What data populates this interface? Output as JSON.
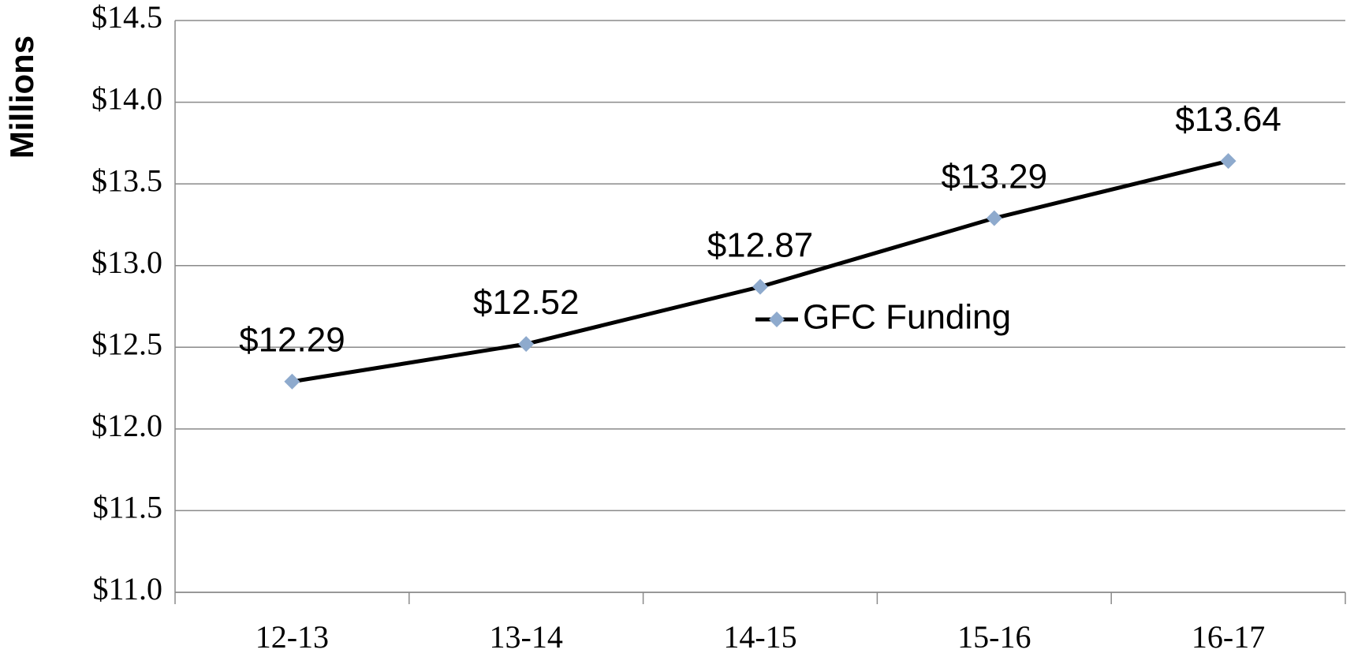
{
  "chart_data": {
    "type": "line",
    "y_label": "Millions",
    "categories": [
      "12-13",
      "13-14",
      "14-15",
      "15-16",
      "16-17"
    ],
    "series": [
      {
        "name": "GFC Funding",
        "color": "#000000",
        "marker_color": "#8eaacd",
        "values": [
          12.29,
          12.52,
          12.87,
          13.29,
          13.64
        ],
        "value_labels": [
          "$12.29",
          "$12.52",
          "$12.87",
          "$13.29",
          "$13.64"
        ]
      }
    ],
    "ylim": [
      11.0,
      14.5
    ],
    "yticks": [
      {
        "value": 11.0,
        "label": "$11.0"
      },
      {
        "value": 11.5,
        "label": "$11.5"
      },
      {
        "value": 12.0,
        "label": "$12.0"
      },
      {
        "value": 12.5,
        "label": "$12.5"
      },
      {
        "value": 13.0,
        "label": "$13.0"
      },
      {
        "value": 13.5,
        "label": "$13.5"
      },
      {
        "value": 14.0,
        "label": "$14.0"
      },
      {
        "value": 14.5,
        "label": "$14.5"
      }
    ],
    "grid": true
  }
}
